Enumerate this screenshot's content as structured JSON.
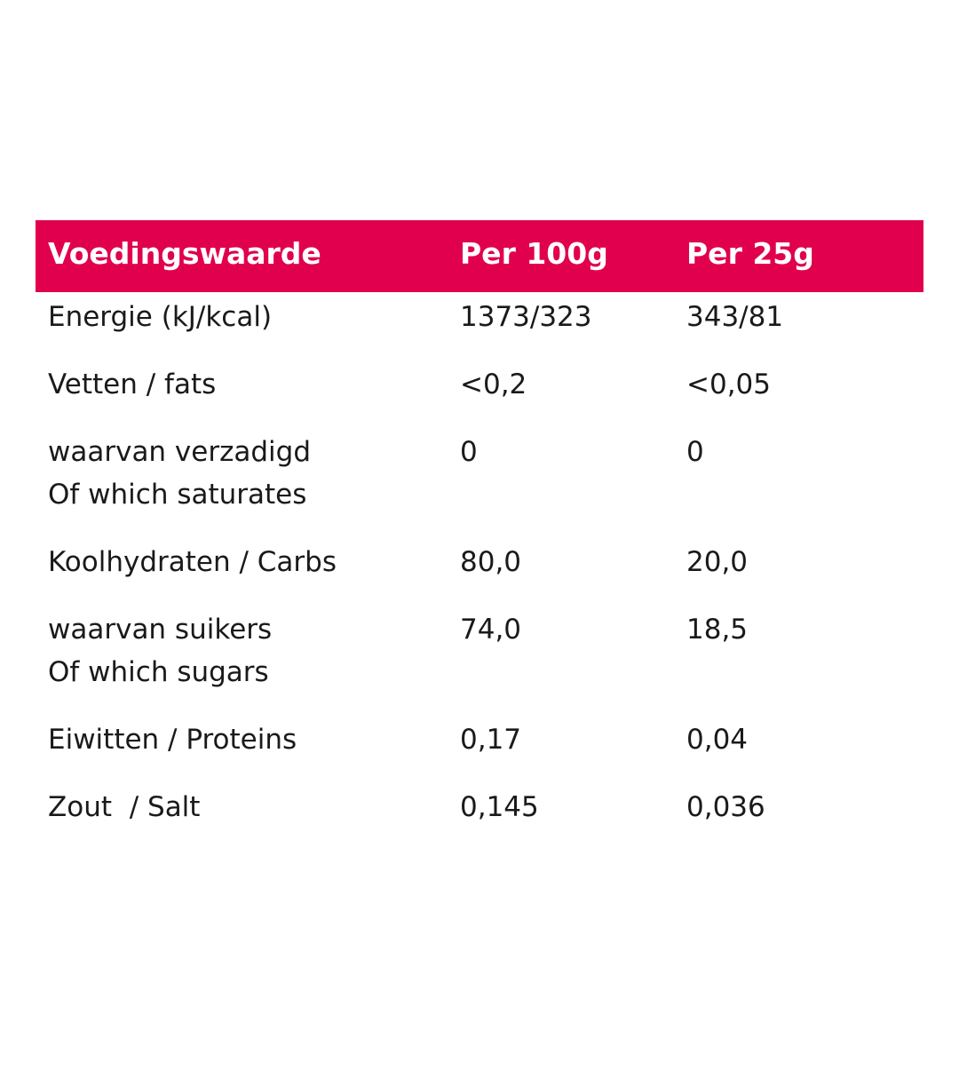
{
  "table": {
    "headers": [
      "Voedingswaarde",
      "Per 100g",
      "Per 25g"
    ],
    "rows": [
      {
        "name": [
          "Energie (kJ/kcal)"
        ],
        "per100": "1373/323",
        "per25": "343/81"
      },
      {
        "name": [
          "Vetten / fats"
        ],
        "per100": "<0,2",
        "per25": "<0,05"
      },
      {
        "name": [
          "waarvan verzadigd",
          "Of which saturates"
        ],
        "per100": "0",
        "per25": "0"
      },
      {
        "name": [
          "Koolhydraten / Carbs"
        ],
        "per100": "80,0",
        "per25": "20,0"
      },
      {
        "name": [
          "waarvan suikers",
          "Of which sugars"
        ],
        "per100": "74,0",
        "per25": "18,5"
      },
      {
        "name": [
          "Eiwitten / Proteins"
        ],
        "per100": "0,17",
        "per25": "0,04"
      },
      {
        "name": [
          "Zout  / Salt"
        ],
        "per100": "0,145",
        "per25": "0,036"
      }
    ],
    "colors": {
      "header_bg": "#e0004d",
      "header_text": "#ffffff",
      "body_text": "#1a1a1a"
    }
  }
}
